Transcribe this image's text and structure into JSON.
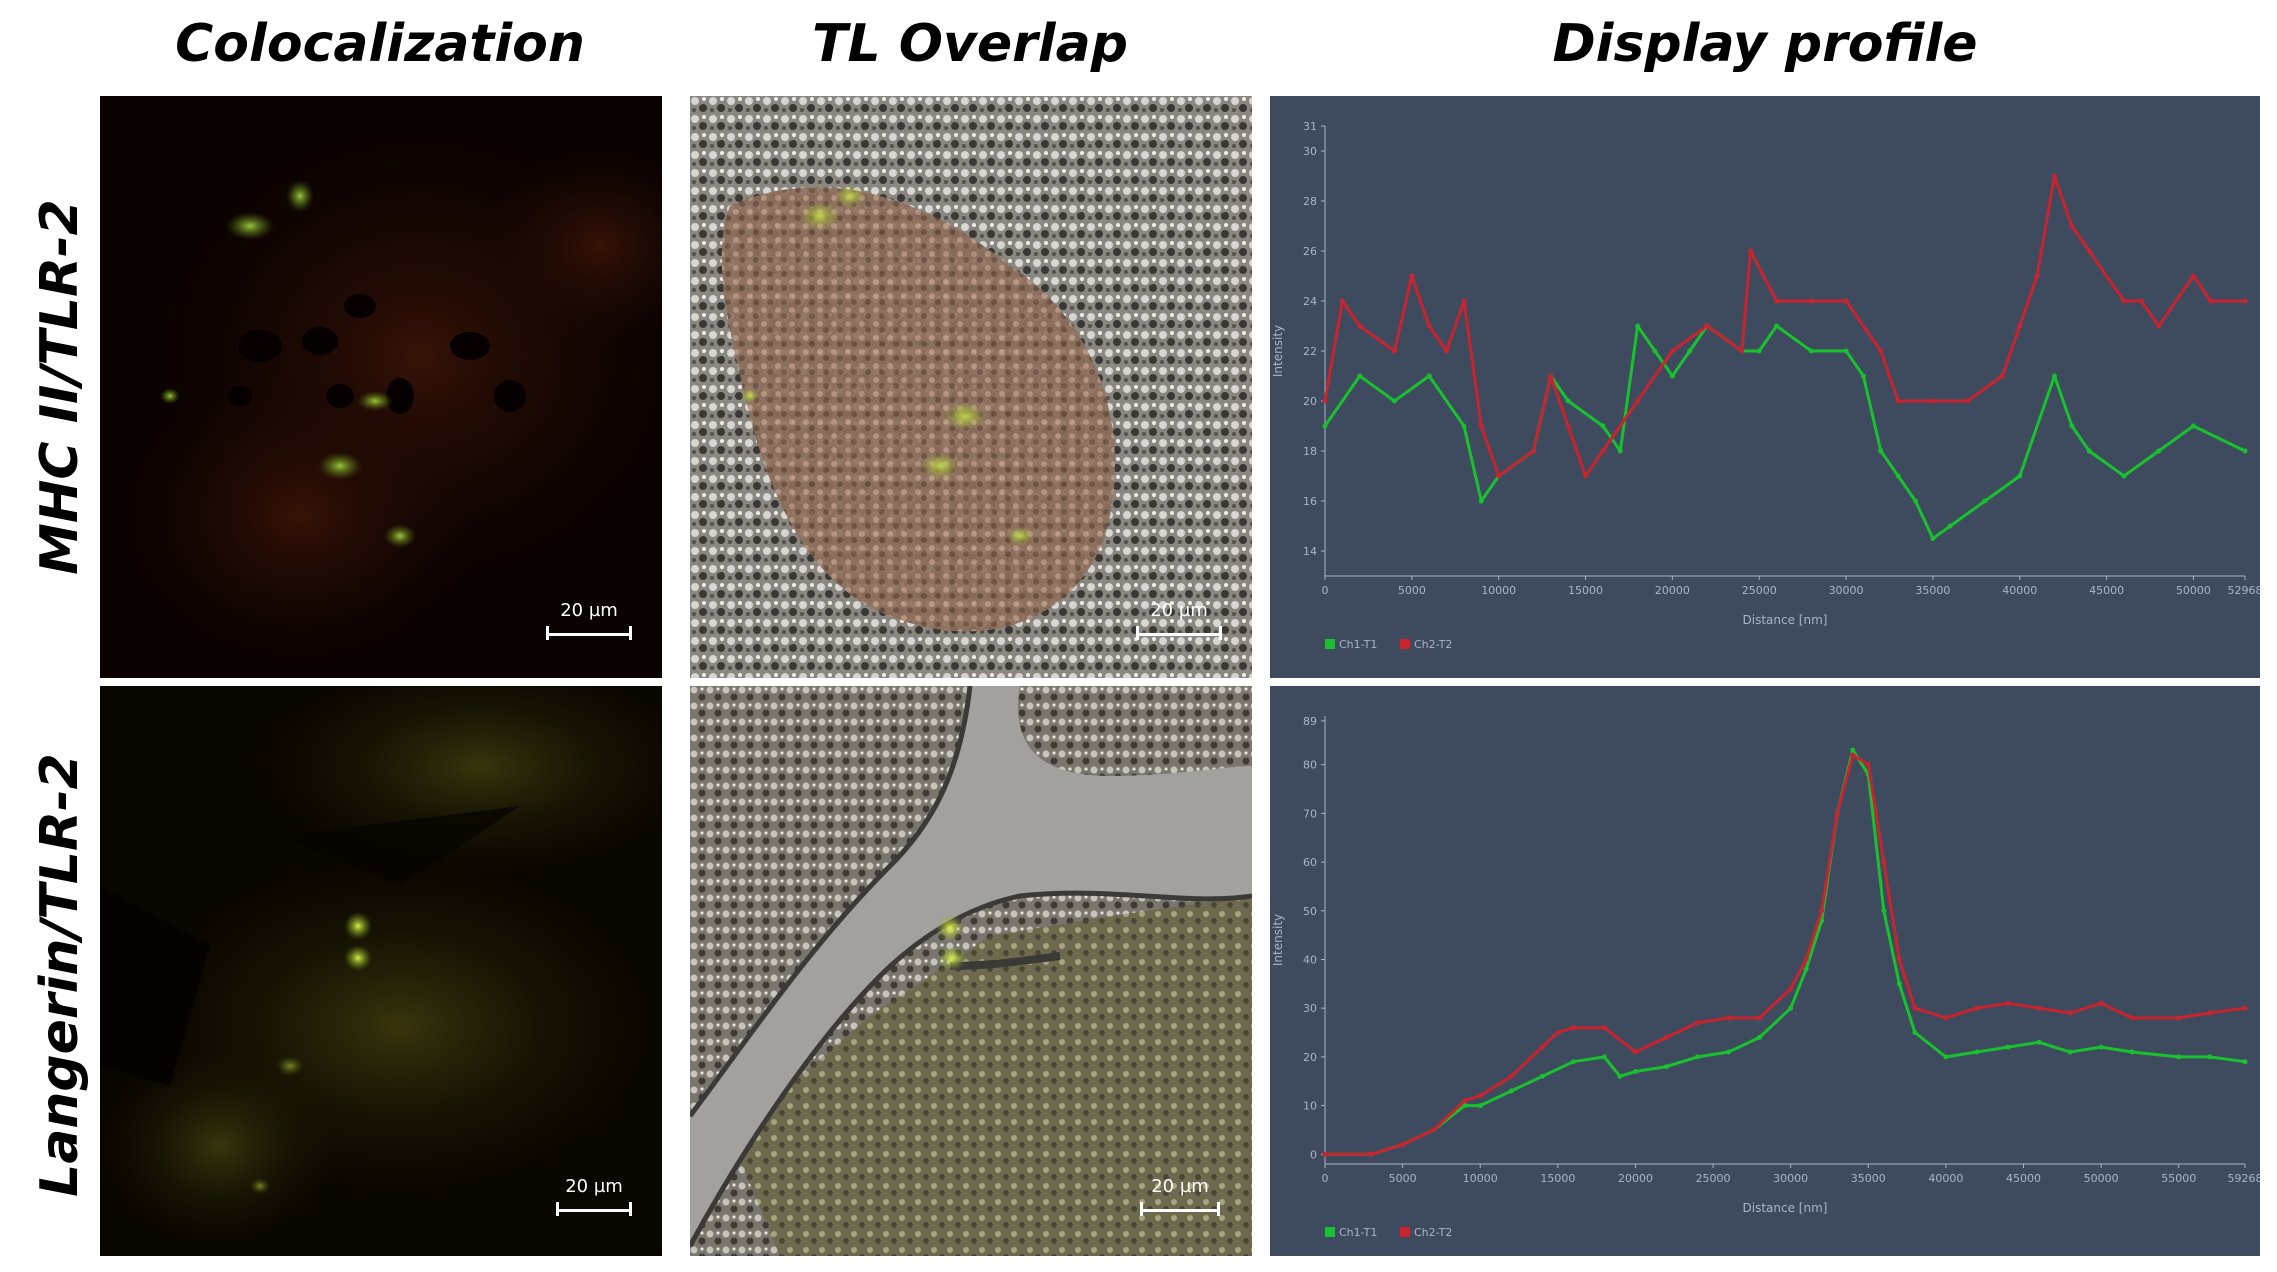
{
  "column_titles": {
    "colocalization": "Colocalization",
    "tl_overlap": "TL Overlap",
    "display_profile": "Display profile"
  },
  "row_titles": {
    "row1": "MHC II/TLR-2",
    "row2": "Langerin/TLR-2"
  },
  "scale_bar_label": "20 µm",
  "colors": {
    "chart_background": "#3e4a5e",
    "ch1": "#19c12f",
    "ch2": "#c8242f",
    "axis_text": "#aab4c4"
  },
  "chart_data": [
    {
      "type": "line",
      "title": "",
      "xlabel": "Distance [nm]",
      "ylabel": "Intensity",
      "xlim": [
        0,
        52968
      ],
      "ylim": [
        13,
        31
      ],
      "x_ticks": [
        "0",
        "5000",
        "10000",
        "15000",
        "20000",
        "25000",
        "30000",
        "35000",
        "40000",
        "45000",
        "50000",
        "52968"
      ],
      "y_ticks": [
        "14",
        "16",
        "18",
        "20",
        "22",
        "24",
        "26",
        "28",
        "30",
        "31"
      ],
      "legend": "bottom-left",
      "series": [
        {
          "name": "Ch1-T1",
          "color": "#19c12f",
          "x": [
            0,
            2000,
            4000,
            6000,
            8000,
            9000,
            10000,
            12000,
            13000,
            14000,
            16000,
            17000,
            18000,
            19000,
            20000,
            21000,
            22000,
            24000,
            25000,
            26000,
            28000,
            30000,
            31000,
            32000,
            33000,
            34000,
            35000,
            36000,
            38000,
            40000,
            42000,
            43000,
            44000,
            46000,
            48000,
            50000,
            52968
          ],
          "values": [
            19,
            21,
            20,
            21,
            19,
            16,
            17,
            18,
            21,
            20,
            19,
            18,
            23,
            22,
            21,
            22,
            23,
            22,
            22,
            23,
            22,
            22,
            21,
            18,
            17,
            16,
            14.5,
            15,
            16,
            17,
            21,
            19,
            18,
            17,
            18,
            19,
            18
          ]
        },
        {
          "name": "Ch2-T2",
          "color": "#c8242f",
          "x": [
            0,
            1000,
            2000,
            4000,
            5000,
            6000,
            7000,
            8000,
            9000,
            10000,
            12000,
            13000,
            14000,
            15000,
            16000,
            18000,
            20000,
            22000,
            24000,
            24500,
            26000,
            28000,
            30000,
            32000,
            33000,
            35000,
            37000,
            39000,
            40000,
            41000,
            42000,
            43000,
            44000,
            46000,
            47000,
            48000,
            50000,
            51000,
            52968
          ],
          "values": [
            20,
            24,
            23,
            22,
            25,
            23,
            22,
            24,
            19,
            17,
            18,
            21,
            19,
            17,
            18,
            20,
            22,
            23,
            22,
            26,
            24,
            24,
            24,
            22,
            20,
            20,
            20,
            21,
            23,
            25,
            29,
            27,
            26,
            24,
            24,
            23,
            25,
            24,
            24
          ]
        }
      ]
    },
    {
      "type": "line",
      "title": "",
      "xlabel": "Distance [nm]",
      "ylabel": "Intensity",
      "xlim": [
        0,
        59268
      ],
      "ylim": [
        -2,
        90
      ],
      "x_ticks": [
        "0",
        "5000",
        "10000",
        "15000",
        "20000",
        "25000",
        "30000",
        "35000",
        "40000",
        "45000",
        "50000",
        "55000",
        "59268"
      ],
      "y_ticks": [
        "0",
        "10",
        "20",
        "30",
        "40",
        "50",
        "60",
        "70",
        "80",
        "89"
      ],
      "legend": "bottom-left",
      "series": [
        {
          "name": "Ch1-T1",
          "color": "#19c12f",
          "x": [
            0,
            3000,
            5000,
            7000,
            9000,
            10000,
            12000,
            14000,
            16000,
            18000,
            19000,
            20000,
            22000,
            24000,
            26000,
            28000,
            30000,
            31000,
            32000,
            33000,
            34000,
            35000,
            36000,
            37000,
            38000,
            40000,
            42000,
            44000,
            46000,
            48000,
            50000,
            52000,
            55000,
            57000,
            59268
          ],
          "values": [
            0,
            0,
            2,
            5,
            10,
            10,
            13,
            16,
            19,
            20,
            16,
            17,
            18,
            20,
            21,
            24,
            30,
            38,
            48,
            70,
            83,
            78,
            50,
            35,
            25,
            20,
            21,
            22,
            23,
            21,
            22,
            21,
            20,
            20,
            19
          ]
        },
        {
          "name": "Ch2-T2",
          "color": "#c8242f",
          "x": [
            0,
            3000,
            5000,
            7000,
            9000,
            10000,
            12000,
            14000,
            15000,
            16000,
            18000,
            20000,
            22000,
            24000,
            26000,
            28000,
            30000,
            31000,
            32000,
            33000,
            34000,
            35000,
            36000,
            37000,
            38000,
            40000,
            42000,
            44000,
            46000,
            48000,
            50000,
            52000,
            55000,
            57000,
            59268
          ],
          "values": [
            0,
            0,
            2,
            5,
            11,
            12,
            16,
            22,
            25,
            26,
            26,
            21,
            24,
            27,
            28,
            28,
            34,
            40,
            50,
            70,
            82,
            80,
            60,
            40,
            30,
            28,
            30,
            31,
            30,
            29,
            31,
            28,
            28,
            29,
            30
          ]
        }
      ]
    }
  ]
}
